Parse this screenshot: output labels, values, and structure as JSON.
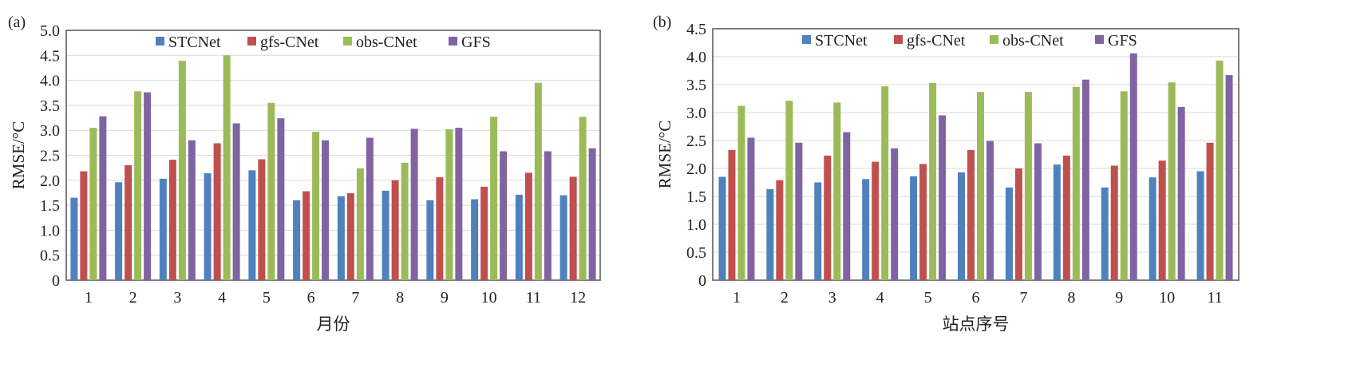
{
  "chart_data": [
    {
      "type": "bar",
      "panel_label": "(a)",
      "title": "",
      "xlabel": "月份",
      "ylabel": "RMSE/°C",
      "ylim": [
        0,
        5.0
      ],
      "yticks": [
        "0",
        "0.5",
        "1.0",
        "1.5",
        "2.0",
        "2.5",
        "3.0",
        "3.5",
        "4.0",
        "4.5",
        "5.0"
      ],
      "grid": true,
      "legend_position": "top-center",
      "categories": [
        "1",
        "2",
        "3",
        "4",
        "5",
        "6",
        "7",
        "8",
        "9",
        "10",
        "11",
        "12"
      ],
      "series": [
        {
          "name": "STCNet",
          "color": "#4f81bd",
          "values": [
            1.65,
            1.96,
            2.03,
            2.14,
            2.2,
            1.6,
            1.68,
            1.79,
            1.6,
            1.62,
            1.71,
            1.7
          ]
        },
        {
          "name": "gfs-CNet",
          "color": "#c0504d",
          "values": [
            2.18,
            2.3,
            2.41,
            2.74,
            2.42,
            1.78,
            1.74,
            2.0,
            2.06,
            1.87,
            2.15,
            2.07
          ]
        },
        {
          "name": "obs-CNet",
          "color": "#9bbb59",
          "values": [
            3.05,
            3.78,
            4.39,
            4.5,
            3.55,
            2.97,
            2.24,
            2.35,
            3.02,
            3.27,
            3.95,
            3.27
          ]
        },
        {
          "name": "GFS",
          "color": "#8064a2",
          "values": [
            3.28,
            3.76,
            2.8,
            3.14,
            3.24,
            2.8,
            2.85,
            3.03,
            3.05,
            2.58,
            2.58,
            2.64
          ]
        }
      ]
    },
    {
      "type": "bar",
      "panel_label": "(b)",
      "title": "",
      "xlabel": "站点序号",
      "ylabel": "RMSE/°C",
      "ylim": [
        0,
        4.5
      ],
      "yticks": [
        "0",
        "0.5",
        "1.0",
        "1.5",
        "2.0",
        "2.5",
        "3.0",
        "3.5",
        "4.0",
        "4.5"
      ],
      "grid": true,
      "legend_position": "top-center",
      "categories": [
        "1",
        "2",
        "3",
        "4",
        "5",
        "6",
        "7",
        "8",
        "9",
        "10",
        "11"
      ],
      "series": [
        {
          "name": "STCNet",
          "color": "#4f81bd",
          "values": [
            1.85,
            1.63,
            1.75,
            1.81,
            1.86,
            1.93,
            1.66,
            2.07,
            1.66,
            1.84,
            1.95
          ]
        },
        {
          "name": "gfs-CNet",
          "color": "#c0504d",
          "values": [
            2.33,
            1.79,
            2.23,
            2.12,
            2.08,
            2.33,
            2.0,
            2.23,
            2.05,
            2.14,
            2.46
          ]
        },
        {
          "name": "obs-CNet",
          "color": "#9bbb59",
          "values": [
            3.12,
            3.21,
            3.18,
            3.47,
            3.53,
            3.37,
            3.37,
            3.46,
            3.38,
            3.54,
            3.93
          ]
        },
        {
          "name": "GFS",
          "color": "#8064a2",
          "values": [
            2.55,
            2.46,
            2.65,
            2.36,
            2.95,
            2.49,
            2.45,
            3.59,
            4.06,
            3.1,
            3.67
          ]
        }
      ]
    }
  ]
}
